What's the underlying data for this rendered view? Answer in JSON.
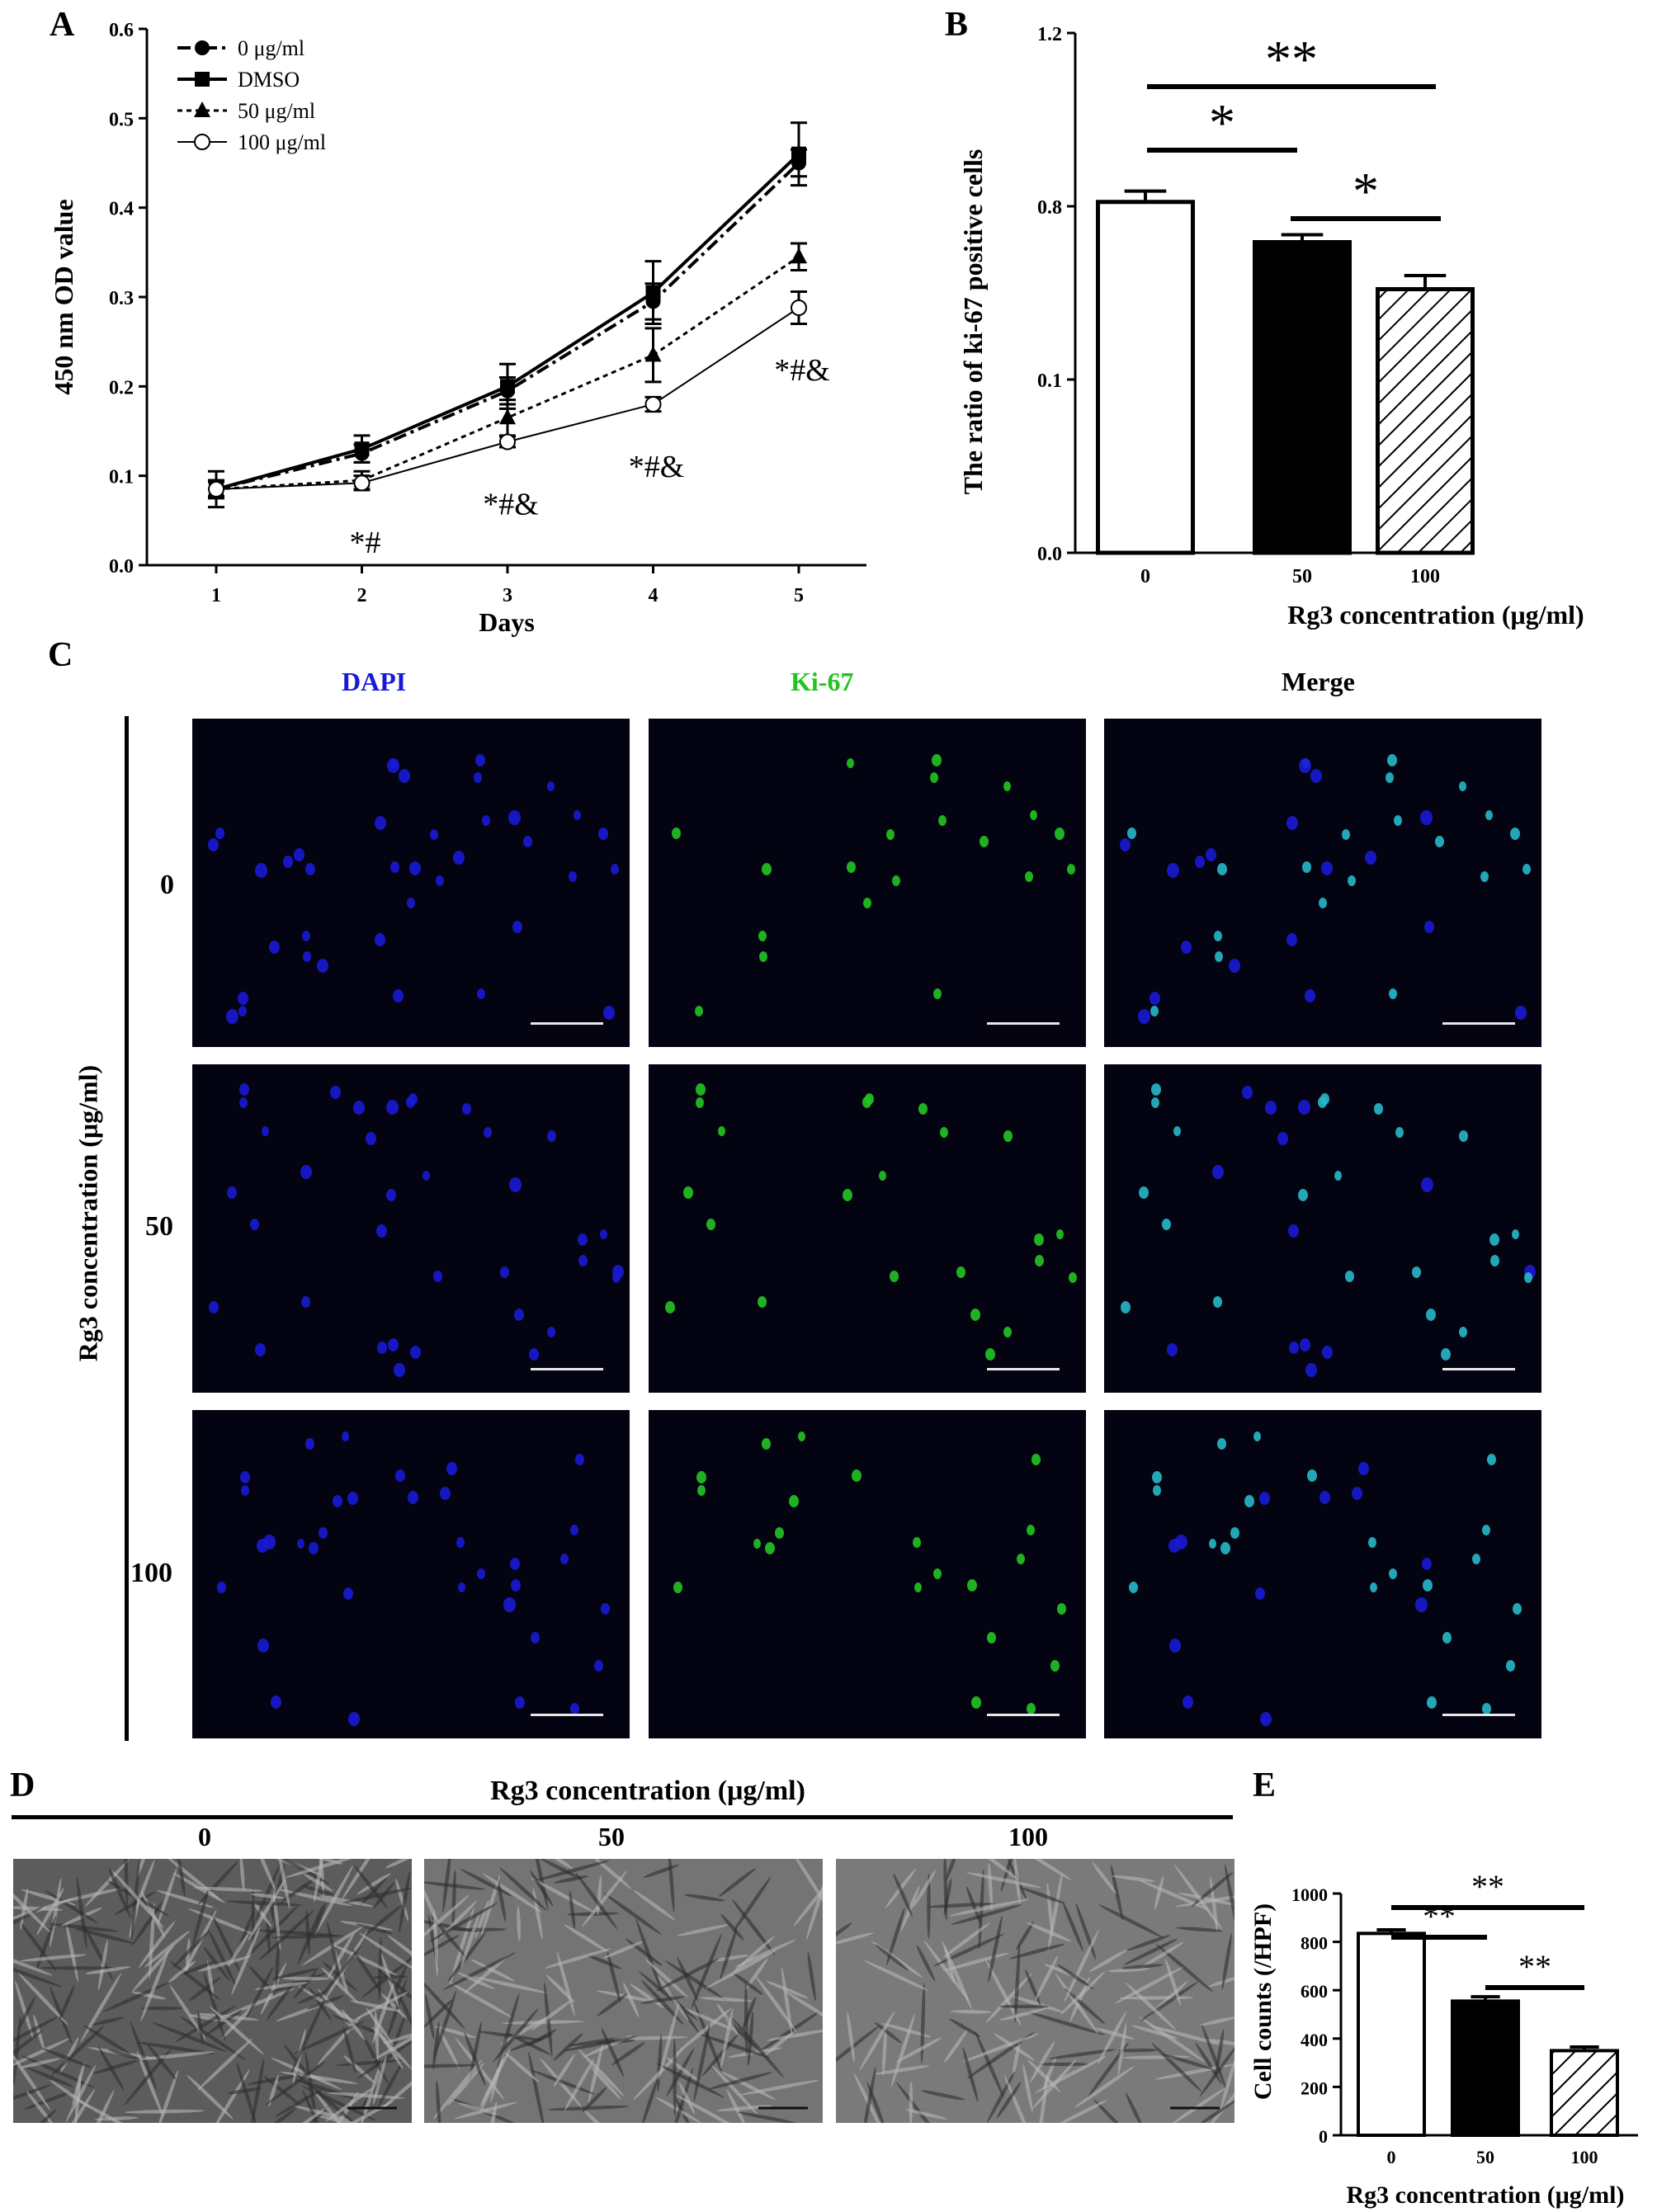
{
  "panels": {
    "A": "A",
    "B": "B",
    "C": "C",
    "D": "D",
    "E": "E"
  },
  "colors": {
    "black": "#000000",
    "dapi": "#1a1ad6",
    "ki67": "#22c422",
    "merge": "#27b8c8",
    "bg_micro": "#030312"
  },
  "chart_data": [
    {
      "id": "A",
      "type": "line",
      "xlabel": "Days",
      "ylabel": "450 nm OD value",
      "x": [
        1,
        2,
        3,
        4,
        5
      ],
      "xticks": [
        "1",
        "2",
        "3",
        "4",
        "5"
      ],
      "yticks": [
        "0.0",
        "0.1",
        "0.2",
        "0.3",
        "0.4",
        "0.5",
        "0.6"
      ],
      "ylim": [
        0,
        0.6
      ],
      "grid": false,
      "legend_position": "top-left",
      "series": [
        {
          "name": "0 μg/ml",
          "marker": "circle-filled",
          "line": "dash-dot",
          "values": [
            0.085,
            0.125,
            0.195,
            0.295,
            0.45
          ],
          "err": [
            0.01,
            0.01,
            0.015,
            0.02,
            0.015
          ]
        },
        {
          "name": "DMSO",
          "marker": "square",
          "line": "solid-thick",
          "values": [
            0.085,
            0.13,
            0.2,
            0.305,
            0.46
          ],
          "err": [
            0.02,
            0.015,
            0.025,
            0.035,
            0.035
          ]
        },
        {
          "name": "50 μg/ml",
          "marker": "triangle",
          "line": "dotted",
          "values": [
            0.085,
            0.095,
            0.165,
            0.235,
            0.345
          ],
          "err": [
            0.01,
            0.01,
            0.02,
            0.03,
            0.015
          ]
        },
        {
          "name": "100 μg/ml",
          "marker": "circle-open",
          "line": "thin",
          "values": [
            0.085,
            0.092,
            0.138,
            0.18,
            0.288
          ],
          "err": [
            0.008,
            0.008,
            0.006,
            0.008,
            0.018
          ]
        }
      ],
      "annotations": [
        {
          "x": 2,
          "y": 0.095,
          "text": "*#"
        },
        {
          "x": 3,
          "y": 0.138,
          "text": "*#&"
        },
        {
          "x": 4,
          "y": 0.18,
          "text": "*#&"
        },
        {
          "x": 5,
          "y": 0.288,
          "text": "*#&"
        }
      ]
    },
    {
      "id": "B",
      "type": "bar",
      "xlabel": "Rg3 concentration (μg/ml)",
      "ylabel": "The ratio of ki-67 positive cells",
      "categories": [
        "0",
        "50",
        "100"
      ],
      "values": [
        0.81,
        0.655,
        0.465
      ],
      "err": [
        0.025,
        0.03,
        0.055
      ],
      "yticks": [
        "0.0",
        "0.1",
        "0.8",
        "1.2"
      ],
      "ylim": [
        0,
        1.2
      ],
      "fills": [
        "white",
        "black",
        "hatched"
      ],
      "significance": [
        {
          "from": "0",
          "to": "100",
          "text": "**"
        },
        {
          "from": "0",
          "to": "50",
          "text": "*"
        },
        {
          "from": "50",
          "to": "100",
          "text": "*"
        }
      ]
    },
    {
      "id": "E",
      "type": "bar",
      "xlabel": "Rg3 concentration (μg/ml)",
      "ylabel": "Cell counts (/HPF)",
      "categories": [
        "0",
        "50",
        "100"
      ],
      "values": [
        835,
        555,
        350
      ],
      "err": [
        15,
        18,
        15
      ],
      "yticks": [
        "0",
        "200",
        "400",
        "600",
        "800",
        "1000"
      ],
      "ylim": [
        0,
        1000
      ],
      "fills": [
        "white",
        "black",
        "hatched"
      ],
      "significance": [
        {
          "from": "0",
          "to": "100",
          "text": "**"
        },
        {
          "from": "0",
          "to": "50",
          "text": "**"
        },
        {
          "from": "50",
          "to": "100",
          "text": "**"
        }
      ]
    }
  ],
  "panel_c": {
    "columns": [
      "DAPI",
      "Ki-67",
      "Merge"
    ],
    "row_axis_label": "Rg3 concentration (μg/ml)",
    "rows": [
      "0",
      "50",
      "100"
    ]
  },
  "panel_d": {
    "title": "Rg3 concentration (μg/ml)",
    "columns": [
      "0",
      "50",
      "100"
    ]
  }
}
